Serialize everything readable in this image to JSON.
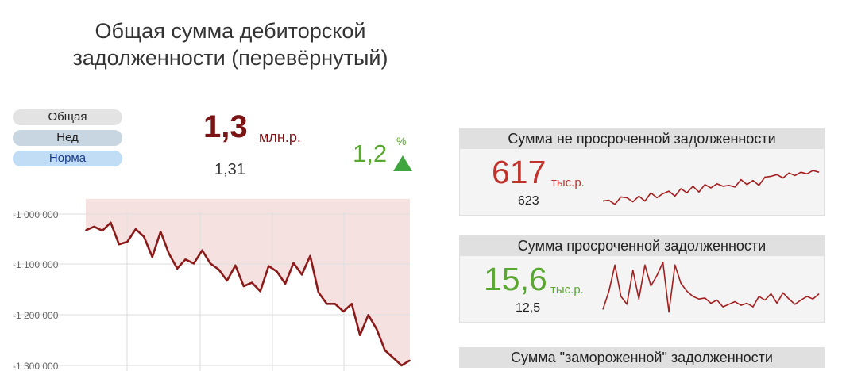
{
  "title_line1": "Общая сумма дебиторской",
  "title_line2": "задолженности (перевёрнутый)",
  "filters": [
    "Общая",
    "Нед",
    "Норма"
  ],
  "kpi": {
    "value": "1,3",
    "unit": "млн.р.",
    "previous": "1,31",
    "delta": "1,2",
    "delta_unit": "%",
    "trend": "up",
    "colors": {
      "value": "#7a1414",
      "delta": "#5aa832",
      "arrow": "#3fa63f"
    }
  },
  "chart_data": {
    "type": "area",
    "y_ticks": [
      "-1 000 000",
      "-1 100 000",
      "-1 200 000",
      "-1 300 000"
    ],
    "ylim": [
      -1330000,
      -970000
    ],
    "grid": true,
    "series": [
      {
        "color": "#8b1a1a",
        "fill": "#f6e1e1",
        "values": [
          -1032000,
          -1025000,
          -1033000,
          -1017000,
          -1060000,
          -1055000,
          -1030000,
          -1045000,
          -1085000,
          -1035000,
          -1078000,
          -1108000,
          -1090000,
          -1098000,
          -1072000,
          -1098000,
          -1110000,
          -1132000,
          -1102000,
          -1143000,
          -1136000,
          -1153000,
          -1103000,
          -1114000,
          -1138000,
          -1097000,
          -1120000,
          -1083000,
          -1155000,
          -1178000,
          -1178000,
          -1193000,
          -1178000,
          -1240000,
          -1200000,
          -1228000,
          -1270000,
          -1285000,
          -1300000,
          -1290000
        ]
      }
    ]
  },
  "cards": [
    {
      "header": "Сумма не просроченной задолженности",
      "value": "617",
      "unit": "тыс.р.",
      "previous": "623",
      "value_color": "#c0322c",
      "spark": [
        0.2,
        0.22,
        0.12,
        0.3,
        0.28,
        0.18,
        0.32,
        0.2,
        0.4,
        0.28,
        0.38,
        0.44,
        0.32,
        0.5,
        0.4,
        0.56,
        0.42,
        0.6,
        0.52,
        0.62,
        0.56,
        0.58,
        0.54,
        0.72,
        0.6,
        0.7,
        0.58,
        0.78,
        0.8,
        0.84,
        0.76,
        0.88,
        0.82,
        0.9,
        0.86,
        0.94,
        0.9
      ]
    },
    {
      "header": "Сумма просроченной задолженности",
      "value": "15,6",
      "unit": "тыс.р.",
      "previous": "12,5",
      "value_color": "#5aa832",
      "spark": [
        0.1,
        0.45,
        0.95,
        0.35,
        0.2,
        0.85,
        0.3,
        0.95,
        0.55,
        0.75,
        1.0,
        0.05,
        0.95,
        0.6,
        0.45,
        0.35,
        0.3,
        0.32,
        0.22,
        0.28,
        0.15,
        0.2,
        0.25,
        0.18,
        0.22,
        0.15,
        0.35,
        0.28,
        0.4,
        0.22,
        0.42,
        0.3,
        0.2,
        0.28,
        0.35,
        0.3,
        0.4
      ]
    },
    {
      "header": "Сумма \"замороженной\" задолженности",
      "value": "",
      "unit": "",
      "previous": "",
      "value_color": "#c0322c",
      "spark": []
    }
  ]
}
